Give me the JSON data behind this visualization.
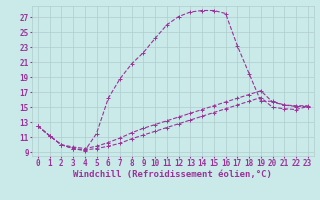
{
  "background_color": "#caeaea",
  "grid_color": "#b0cccc",
  "line_color": "#993399",
  "xlabel": "Windchill (Refroidissement éolien,°C)",
  "xlim": [
    -0.5,
    23.5
  ],
  "ylim": [
    8.5,
    28.5
  ],
  "yticks": [
    9,
    11,
    13,
    15,
    17,
    19,
    21,
    23,
    25,
    27
  ],
  "xticks": [
    0,
    1,
    2,
    3,
    4,
    5,
    6,
    7,
    8,
    9,
    10,
    11,
    12,
    13,
    14,
    15,
    16,
    17,
    18,
    19,
    20,
    21,
    22,
    23
  ],
  "line1_x": [
    0,
    1,
    2,
    3,
    4,
    5,
    6,
    7,
    8,
    9,
    10,
    11,
    12,
    13,
    14,
    15,
    16,
    17,
    18,
    19,
    20,
    21,
    22,
    23
  ],
  "line1_y": [
    12.5,
    11.2,
    10.0,
    9.5,
    9.2,
    11.5,
    16.2,
    18.8,
    20.8,
    22.3,
    24.2,
    26.0,
    27.1,
    27.7,
    27.9,
    27.9,
    27.5,
    23.2,
    19.5,
    15.8,
    15.8,
    15.3,
    15.1,
    15.1
  ],
  "line2_x": [
    0,
    1,
    2,
    3,
    4,
    5,
    6,
    7,
    8,
    9,
    10,
    11,
    12,
    13,
    14,
    15,
    16,
    17,
    18,
    19,
    20,
    21,
    22,
    23
  ],
  "line2_y": [
    12.5,
    11.2,
    10.0,
    9.7,
    9.5,
    9.8,
    10.3,
    10.9,
    11.6,
    12.2,
    12.7,
    13.2,
    13.7,
    14.2,
    14.7,
    15.2,
    15.7,
    16.2,
    16.7,
    17.2,
    15.7,
    15.3,
    15.2,
    15.2
  ],
  "line3_x": [
    0,
    1,
    2,
    3,
    4,
    5,
    6,
    7,
    8,
    9,
    10,
    11,
    12,
    13,
    14,
    15,
    16,
    17,
    18,
    19,
    20,
    21,
    22,
    23
  ],
  "line3_y": [
    12.5,
    11.2,
    10.0,
    9.5,
    9.3,
    9.5,
    9.8,
    10.2,
    10.8,
    11.3,
    11.8,
    12.3,
    12.8,
    13.3,
    13.8,
    14.3,
    14.8,
    15.3,
    15.8,
    16.3,
    15.0,
    14.8,
    14.7,
    15.1
  ],
  "marker": "+",
  "markersize": 3,
  "linewidth": 0.8,
  "xlabel_fontsize": 6.5,
  "tick_fontsize": 5.5,
  "tick_color": "#993399"
}
